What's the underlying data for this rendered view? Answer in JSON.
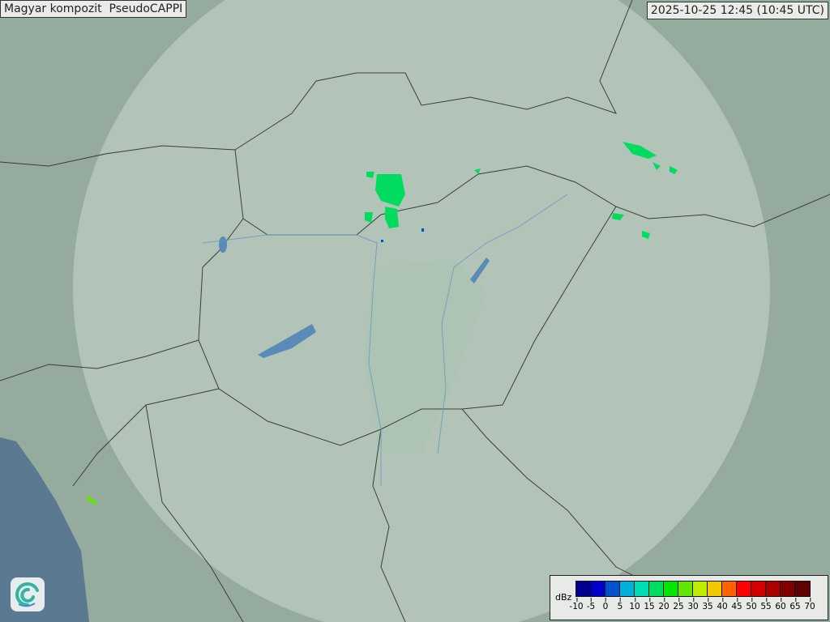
{
  "header": {
    "title": "Magyar kompozit  PseudoCAPPI",
    "timestamp": "2025-10-25 12:45 (10:45 UTC)"
  },
  "legend": {
    "unit": "dBz",
    "ticks": [
      "-10",
      "-5",
      "0",
      "5",
      "10",
      "15",
      "20",
      "25",
      "30",
      "35",
      "40",
      "45",
      "50",
      "55",
      "60",
      "65",
      "70"
    ],
    "colors": [
      "#000090",
      "#0000c8",
      "#0050d0",
      "#00b0dc",
      "#00dcb4",
      "#00dc60",
      "#00e600",
      "#60e600",
      "#c0ec00",
      "#f4c800",
      "#ff6400",
      "#ff0000",
      "#d40000",
      "#aa0000",
      "#800000",
      "#600000"
    ]
  },
  "logo": {
    "name": "met-service-swirl-logo"
  },
  "map": {
    "land_color": "#8fa89a",
    "coverage_color": "#c8d8cc",
    "sea_color": "#5b7a92",
    "echo_color": "#00dc60"
  }
}
